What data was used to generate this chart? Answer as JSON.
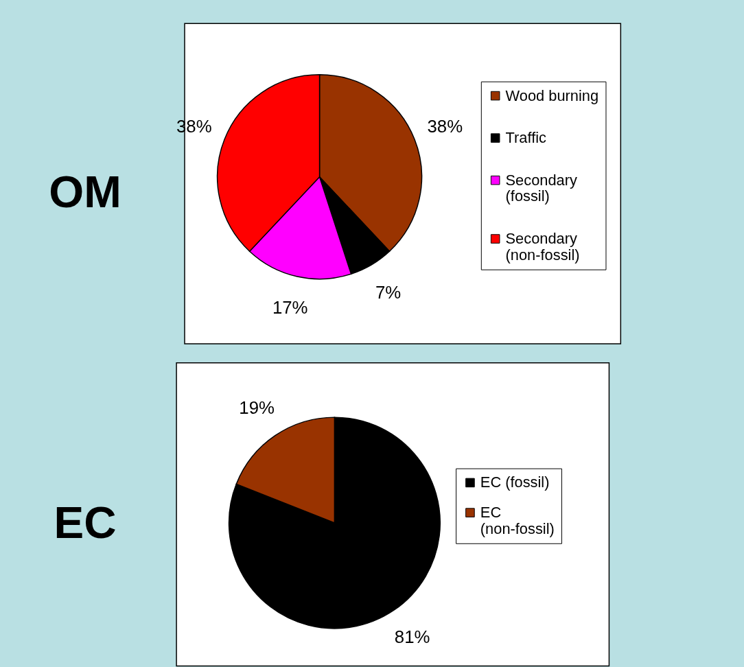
{
  "chart_data": [
    {
      "type": "pie",
      "title": "OM",
      "categories": [
        "Wood burning",
        "Traffic",
        "Secondary (fossil)",
        "Secondary (non-fossil)"
      ],
      "values": [
        38,
        7,
        17,
        38
      ],
      "colors": [
        "#993300",
        "#000000",
        "#ff00ff",
        "#ff0000"
      ],
      "value_labels": [
        "38%",
        "7%",
        "17%",
        "38%"
      ],
      "legend": "right"
    },
    {
      "type": "pie",
      "title": "EC",
      "categories": [
        "EC (fossil)",
        "EC (non-fossil)"
      ],
      "values": [
        81,
        19
      ],
      "colors": [
        "#000000",
        "#993300"
      ],
      "value_labels": [
        "81%",
        "19%"
      ],
      "legend": "right"
    }
  ]
}
